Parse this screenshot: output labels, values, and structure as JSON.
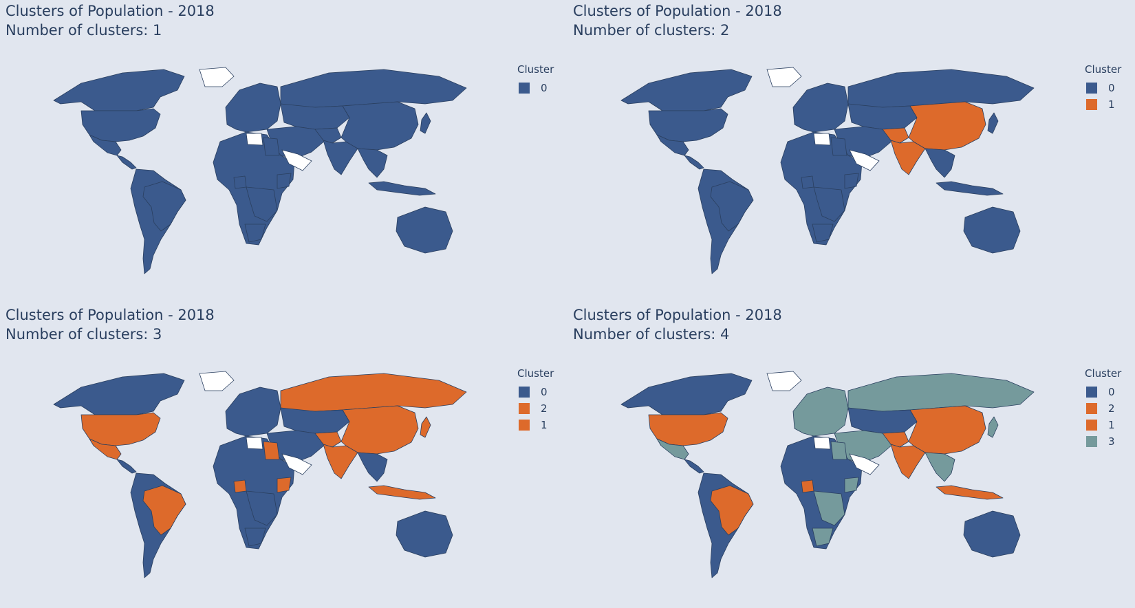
{
  "colors": {
    "background": "#e1e6ef",
    "no_data": "#ffffff",
    "border": "#2a3f5f"
  },
  "panels": [
    {
      "title": "Clusters of Population - 2018",
      "subtitle": "Number of clusters: 1",
      "legend": {
        "title": "Cluster",
        "items": [
          {
            "label": "0",
            "color": "#3b5a8d"
          }
        ]
      }
    },
    {
      "title": "Clusters of Population - 2018",
      "subtitle": "Number of clusters: 2",
      "legend": {
        "title": "Cluster",
        "items": [
          {
            "label": "0",
            "color": "#3b5a8d"
          },
          {
            "label": "1",
            "color": "#dd6a2b"
          }
        ]
      }
    },
    {
      "title": "Clusters of Population - 2018",
      "subtitle": "Number of clusters: 3",
      "legend": {
        "title": "Cluster",
        "items": [
          {
            "label": "0",
            "color": "#3b5a8d"
          },
          {
            "label": "2",
            "color": "#dd6a2b"
          },
          {
            "label": "1",
            "color": "#dd6a2b"
          }
        ]
      }
    },
    {
      "title": "Clusters of Population - 2018",
      "subtitle": "Number of clusters: 4",
      "legend": {
        "title": "Cluster",
        "items": [
          {
            "label": "0",
            "color": "#3b5a8d"
          },
          {
            "label": "2",
            "color": "#dd6a2b"
          },
          {
            "label": "1",
            "color": "#dd6a2b"
          },
          {
            "label": "3",
            "color": "#759a9c"
          }
        ]
      }
    }
  ],
  "clusters_by_panel": [
    {
      "north-america": "0",
      "usa": "0",
      "mexico": "0",
      "central-america": "0",
      "south-america": "0",
      "brazil": "0",
      "europe": "0",
      "russia": "0",
      "central-asia": "0",
      "middle-east": "0",
      "south-asia": "0",
      "india": "0",
      "china": "0",
      "japan": "0",
      "southeast-asia": "0",
      "indonesia": "0",
      "africa": "0",
      "nigeria": "0",
      "ethiopia": "0",
      "egypt": "0",
      "south-africa": "0",
      "central-africa": "0",
      "australia": "0"
    },
    {
      "north-america": "0",
      "usa": "0",
      "mexico": "0",
      "central-america": "0",
      "south-america": "0",
      "brazil": "0",
      "europe": "0",
      "russia": "0",
      "central-asia": "0",
      "middle-east": "0",
      "south-asia": "1",
      "india": "1",
      "china": "1",
      "japan": "0",
      "southeast-asia": "0",
      "indonesia": "0",
      "africa": "0",
      "nigeria": "0",
      "ethiopia": "0",
      "egypt": "0",
      "south-africa": "0",
      "central-africa": "0",
      "australia": "0"
    },
    {
      "north-america": "0",
      "usa": "2",
      "mexico": "2",
      "central-america": "0",
      "south-america": "0",
      "brazil": "2",
      "europe": "0",
      "russia": "2",
      "central-asia": "0",
      "middle-east": "0",
      "south-asia": "2",
      "india": "1",
      "china": "1",
      "japan": "2",
      "southeast-asia": "0",
      "indonesia": "2",
      "africa": "0",
      "nigeria": "2",
      "ethiopia": "2",
      "egypt": "2",
      "south-africa": "0",
      "central-africa": "0",
      "australia": "0"
    },
    {
      "north-america": "0",
      "usa": "2",
      "mexico": "3",
      "central-america": "0",
      "south-america": "0",
      "brazil": "2",
      "europe": "3",
      "russia": "3",
      "central-asia": "0",
      "middle-east": "3",
      "south-asia": "2",
      "india": "1",
      "china": "1",
      "japan": "3",
      "southeast-asia": "3",
      "indonesia": "2",
      "africa": "0",
      "nigeria": "2",
      "ethiopia": "3",
      "egypt": "3",
      "south-africa": "3",
      "central-africa": "3",
      "australia": "0"
    }
  ]
}
